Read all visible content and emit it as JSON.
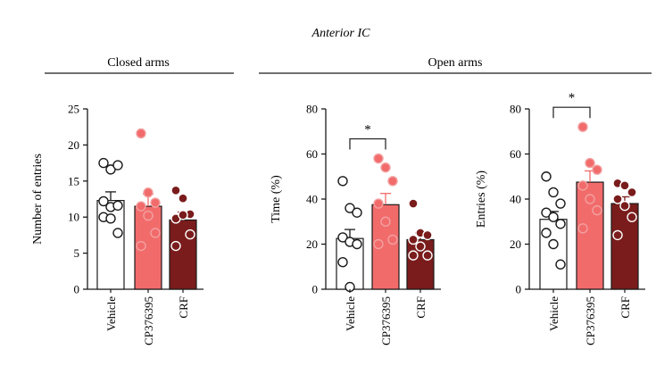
{
  "figure": {
    "title": "Anterior IC",
    "sections": [
      {
        "label": "Closed arms"
      },
      {
        "label": "Open arms"
      }
    ]
  },
  "colors": {
    "vehicle_fill": "#ffffff",
    "cp_fill": "#f26b6b",
    "crf_fill": "#7a1c1c",
    "axis": "#1a1a1a",
    "cp_dot_stroke": "#f2a0a0",
    "crf_dot_stroke": "#4a1010",
    "vehicle_dot_stroke": "#1a1a1a"
  },
  "chart_data": [
    {
      "type": "bar",
      "title": "",
      "xlabel": "",
      "ylabel": "Number of entries",
      "ylim": [
        0,
        25
      ],
      "yticks": [
        0,
        5,
        10,
        15,
        20,
        25
      ],
      "categories": [
        "Vehicle",
        "CP376395",
        "CRF"
      ],
      "values": [
        12.3,
        11.5,
        9.6
      ],
      "sem": [
        1.2,
        1.7,
        1.1
      ],
      "points": [
        [
          17.5,
          16.6,
          17.2,
          12.2,
          11.4,
          11.6,
          10.0,
          9.8,
          7.8
        ],
        [
          21.6,
          13.4,
          12.0,
          11.5,
          10.2,
          7.8,
          6.0
        ],
        [
          13.7,
          12.6,
          10.4,
          9.8,
          10.3,
          7.6,
          6.0
        ]
      ],
      "significance": []
    },
    {
      "type": "bar",
      "title": "",
      "xlabel": "",
      "ylabel": "Time (%)",
      "ylim": [
        0,
        80
      ],
      "yticks": [
        0,
        20,
        40,
        60,
        80
      ],
      "categories": [
        "Vehicle",
        "CP376395",
        "CRF"
      ],
      "values": [
        22.5,
        37.5,
        22.0
      ],
      "sem": [
        4.0,
        5.0,
        3.0
      ],
      "points": [
        [
          48.0,
          36.0,
          34.0,
          23.0,
          21.0,
          20.0,
          12.0,
          1.0
        ],
        [
          58.0,
          54.0,
          48.0,
          38.0,
          30.0,
          22.0,
          20.0
        ],
        [
          38.0,
          25.0,
          24.0,
          22.0,
          19.0,
          15.0,
          15.0
        ]
      ],
      "significance": [
        {
          "from": 0,
          "to": 1,
          "label": "*"
        }
      ]
    },
    {
      "type": "bar",
      "title": "",
      "xlabel": "",
      "ylabel": "Entries (%)",
      "ylim": [
        0,
        80
      ],
      "yticks": [
        0,
        20,
        40,
        60,
        80
      ],
      "categories": [
        "Vehicle",
        "CP376395",
        "CRF"
      ],
      "values": [
        31.0,
        47.5,
        38.0
      ],
      "sem": [
        3.5,
        5.0,
        3.0
      ],
      "points": [
        [
          50.0,
          43.0,
          38.0,
          34.0,
          32.0,
          29.0,
          25.0,
          20.0,
          11.0
        ],
        [
          72.0,
          56.0,
          53.0,
          46.0,
          40.0,
          35.0,
          27.0
        ],
        [
          47.0,
          46.0,
          43.0,
          40.0,
          37.0,
          32.0,
          24.0
        ]
      ],
      "significance": [
        {
          "from": 0,
          "to": 1,
          "label": "*"
        }
      ]
    }
  ]
}
